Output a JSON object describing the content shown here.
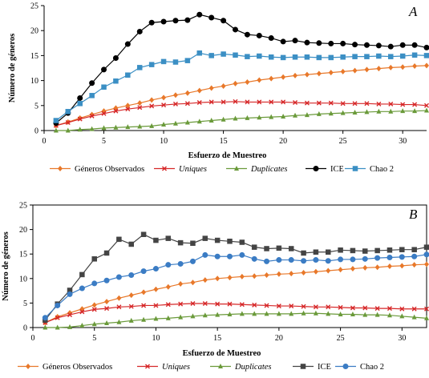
{
  "chart_data": [
    {
      "type": "line",
      "panel": "A",
      "xlabel": "Esfuerzo de Muestreo",
      "ylabel": "Número de géneros",
      "xlim": [
        0,
        32
      ],
      "ylim": [
        0,
        25
      ],
      "xticks": [
        0,
        5,
        10,
        15,
        20,
        25,
        30
      ],
      "yticks": [
        0,
        5,
        10,
        15,
        20,
        25
      ],
      "grid": false,
      "legend_position": "bottom",
      "x": [
        1,
        2,
        3,
        4,
        5,
        6,
        7,
        8,
        9,
        10,
        11,
        12,
        13,
        14,
        15,
        16,
        17,
        18,
        19,
        20,
        21,
        22,
        23,
        24,
        25,
        26,
        27,
        28,
        29,
        30,
        31,
        32
      ],
      "series": [
        {
          "name": "Géneros Observados",
          "color": "#e8782a",
          "marker": "diamond",
          "values": [
            1.0,
            1.7,
            2.5,
            3.2,
            3.9,
            4.5,
            5.0,
            5.5,
            6.1,
            6.6,
            7.1,
            7.5,
            8.0,
            8.5,
            8.9,
            9.4,
            9.7,
            10.1,
            10.4,
            10.7,
            11.0,
            11.2,
            11.4,
            11.6,
            11.8,
            12.0,
            12.2,
            12.4,
            12.6,
            12.7,
            12.9,
            13.0
          ]
        },
        {
          "name": "Uniques",
          "color": "#d62728",
          "marker": "x",
          "values": [
            1.0,
            1.6,
            2.3,
            2.9,
            3.4,
            3.9,
            4.3,
            4.6,
            4.9,
            5.1,
            5.3,
            5.4,
            5.6,
            5.7,
            5.7,
            5.8,
            5.7,
            5.7,
            5.7,
            5.7,
            5.6,
            5.5,
            5.5,
            5.5,
            5.4,
            5.4,
            5.4,
            5.3,
            5.3,
            5.2,
            5.2,
            5.0
          ]
        },
        {
          "name": "Duplicates",
          "color": "#6a9a3a",
          "marker": "triangle",
          "values": [
            0,
            0,
            0.2,
            0.3,
            0.5,
            0.6,
            0.7,
            0.8,
            0.9,
            1.2,
            1.4,
            1.6,
            1.8,
            2.0,
            2.2,
            2.4,
            2.5,
            2.6,
            2.7,
            2.8,
            3.0,
            3.1,
            3.3,
            3.4,
            3.5,
            3.6,
            3.7,
            3.8,
            3.8,
            3.9,
            3.9,
            4.0
          ]
        },
        {
          "name": "ICE",
          "color": "#000000",
          "marker": "circle",
          "values": [
            1.5,
            3.5,
            6.5,
            9.5,
            12.2,
            14.5,
            17.3,
            19.8,
            21.6,
            21.8,
            22.0,
            22.1,
            23.2,
            22.6,
            22.0,
            20.2,
            19.2,
            19.0,
            18.5,
            17.8,
            18.0,
            17.6,
            17.5,
            17.4,
            17.4,
            17.2,
            17.1,
            17.0,
            16.8,
            17.1,
            17.1,
            16.6
          ]
        },
        {
          "name": "Chao 2",
          "color": "#3b8fc4",
          "marker": "square",
          "values": [
            2.0,
            3.8,
            5.4,
            7.0,
            8.7,
            9.9,
            11.1,
            12.6,
            13.2,
            13.8,
            13.7,
            14.0,
            15.5,
            15.0,
            15.3,
            15.1,
            14.8,
            14.9,
            14.7,
            14.6,
            14.7,
            14.7,
            14.6,
            14.6,
            14.7,
            14.8,
            14.8,
            14.9,
            14.8,
            14.9,
            15.1,
            15.0
          ]
        }
      ]
    },
    {
      "type": "line",
      "panel": "B",
      "xlabel": "Esfuerzo de Muestreo",
      "ylabel": "Número de géneros",
      "xlim": [
        0,
        32
      ],
      "ylim": [
        0,
        25
      ],
      "xticks": [
        0,
        5,
        10,
        15,
        20,
        25,
        30
      ],
      "yticks": [
        0,
        5,
        10,
        15,
        20,
        25
      ],
      "grid": false,
      "legend_position": "bottom",
      "x": [
        1,
        2,
        3,
        4,
        5,
        6,
        7,
        8,
        9,
        10,
        11,
        12,
        13,
        14,
        15,
        16,
        17,
        18,
        19,
        20,
        21,
        22,
        23,
        24,
        25,
        26,
        27,
        28,
        29,
        30,
        31,
        32
      ],
      "series": [
        {
          "name": "Géneros Observados",
          "color": "#e8782a",
          "marker": "diamond",
          "values": [
            1.0,
            2.2,
            3.0,
            3.8,
            4.6,
            5.3,
            6.0,
            6.6,
            7.2,
            7.8,
            8.3,
            8.9,
            9.2,
            9.7,
            10.0,
            10.2,
            10.4,
            10.5,
            10.7,
            10.9,
            11.0,
            11.2,
            11.4,
            11.6,
            11.8,
            12.0,
            12.2,
            12.3,
            12.5,
            12.6,
            12.8,
            12.9
          ]
        },
        {
          "name": "Uniques",
          "color": "#d62728",
          "marker": "x",
          "values": [
            1.0,
            2.0,
            2.6,
            3.2,
            3.7,
            3.9,
            4.2,
            4.3,
            4.5,
            4.5,
            4.7,
            4.8,
            4.9,
            4.9,
            4.8,
            4.8,
            4.7,
            4.6,
            4.5,
            4.4,
            4.4,
            4.3,
            4.2,
            4.2,
            4.1,
            4.0,
            4.0,
            3.9,
            3.9,
            3.8,
            3.8,
            3.8
          ]
        },
        {
          "name": "Duplicates",
          "color": "#6a9a3a",
          "marker": "triangle",
          "values": [
            0,
            0,
            0.1,
            0.4,
            0.7,
            0.9,
            1.1,
            1.4,
            1.6,
            1.8,
            1.9,
            2.1,
            2.3,
            2.5,
            2.6,
            2.7,
            2.8,
            2.8,
            2.8,
            2.8,
            2.8,
            2.9,
            2.9,
            2.8,
            2.7,
            2.7,
            2.6,
            2.6,
            2.5,
            2.3,
            2.1,
            1.9
          ]
        },
        {
          "name": "ICE",
          "color": "#444444",
          "marker": "square",
          "values": [
            1.5,
            4.8,
            7.6,
            10.8,
            14.0,
            15.2,
            18.0,
            17.0,
            19.0,
            17.8,
            18.2,
            17.3,
            17.2,
            18.2,
            17.8,
            17.6,
            17.4,
            16.4,
            16.1,
            16.2,
            16.1,
            15.2,
            15.4,
            15.4,
            15.8,
            15.7,
            15.6,
            15.7,
            15.8,
            15.9,
            15.9,
            16.4
          ]
        },
        {
          "name": "Chao 2",
          "color": "#3b7cc4",
          "marker": "circle",
          "values": [
            2.0,
            4.5,
            6.8,
            8.0,
            9.0,
            9.6,
            10.3,
            10.7,
            11.5,
            12.0,
            12.8,
            13.0,
            13.5,
            14.8,
            14.5,
            14.5,
            14.8,
            14.0,
            13.5,
            13.8,
            13.8,
            13.6,
            13.8,
            13.6,
            13.9,
            13.9,
            14.0,
            14.2,
            14.3,
            14.4,
            14.5,
            14.9
          ]
        }
      ]
    }
  ]
}
